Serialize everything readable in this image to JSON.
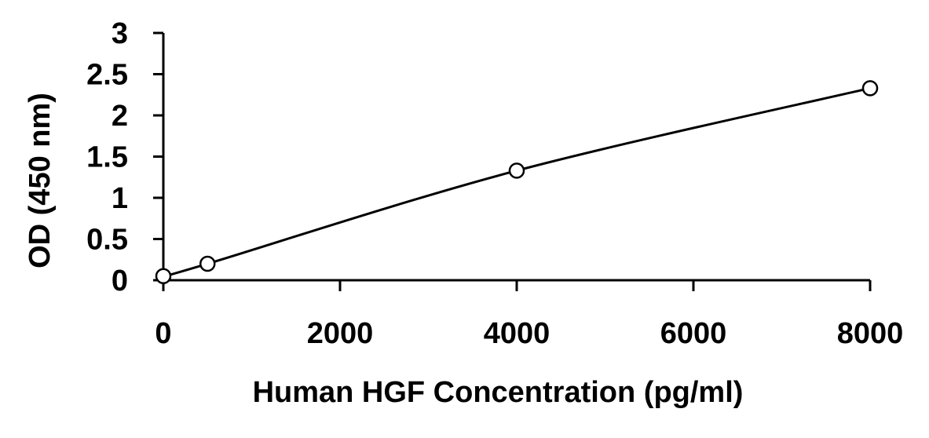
{
  "chart_data": {
    "type": "scatter",
    "title": "",
    "xlabel": "Human HGF Concentration (pg/ml)",
    "ylabel": "OD (450 nm)",
    "xlim": [
      0,
      8000
    ],
    "ylim": [
      0,
      3
    ],
    "x_ticks": [
      "0",
      "2000",
      "4000",
      "6000",
      "8000"
    ],
    "y_ticks": [
      "0",
      "0.5",
      "1",
      "1.5",
      "2",
      "2.5",
      "3"
    ],
    "grid": false,
    "legend": "none",
    "series": [
      {
        "x": [
          0,
          500,
          4000,
          8000
        ],
        "y": [
          0.05,
          0.2,
          1.33,
          2.33
        ],
        "marker": "open-circle",
        "fit_line": "smooth-curve",
        "color": "#000000"
      }
    ]
  }
}
